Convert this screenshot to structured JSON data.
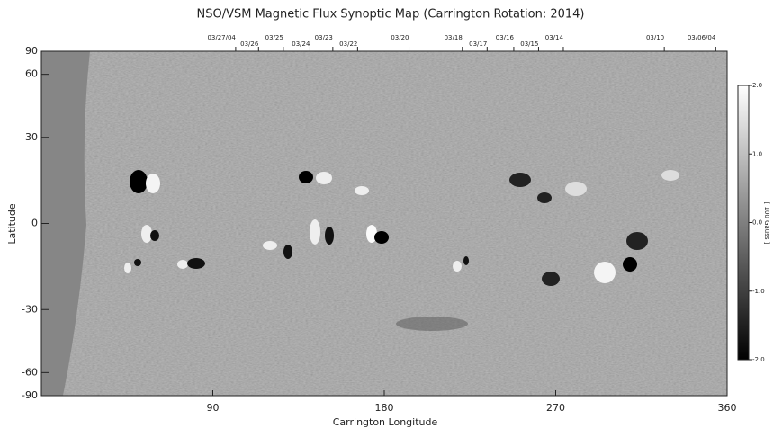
{
  "chart_data": {
    "type": "heatmap",
    "title": "NSO/VSM Magnetic Flux Synoptic Map (Carrington Rotation: 2014)",
    "xlabel": "Carrington Longitude",
    "ylabel": "Latitude",
    "xlim": [
      0,
      360
    ],
    "xticks": [
      90,
      180,
      270,
      360
    ],
    "ylim": [
      -90,
      90
    ],
    "yticks": [
      -90,
      -60,
      -30,
      0,
      30,
      60,
      90
    ],
    "yscale": "sine",
    "x2ticks": [
      {
        "value": 102,
        "label": "03/27/04"
      },
      {
        "value": 114,
        "label": "03/26"
      },
      {
        "value": 127,
        "label": "03/25"
      },
      {
        "value": 141,
        "label": "03/24"
      },
      {
        "value": 153,
        "label": "03/23"
      },
      {
        "value": 166,
        "label": "03/22"
      },
      {
        "value": 193,
        "label": "03/20"
      },
      {
        "value": 221,
        "label": "03/18"
      },
      {
        "value": 234,
        "label": "03/17"
      },
      {
        "value": 248,
        "label": "03/16"
      },
      {
        "value": 261,
        "label": "03/15"
      },
      {
        "value": 274,
        "label": "03/14"
      },
      {
        "value": 327,
        "label": "03/10"
      },
      {
        "value": 354,
        "label": "03/06/04"
      }
    ],
    "colorbar": {
      "label": "[ 100 Gauss ]",
      "lim": [
        -2,
        2
      ],
      "ticks": [
        {
          "value": -2,
          "label": "-2.0"
        },
        {
          "value": -1,
          "label": "-1.0"
        },
        {
          "value": 0,
          "label": "0.0"
        },
        {
          "value": 1,
          "label": "1.0"
        },
        {
          "value": 2,
          "label": "2.0"
        }
      ]
    }
  }
}
